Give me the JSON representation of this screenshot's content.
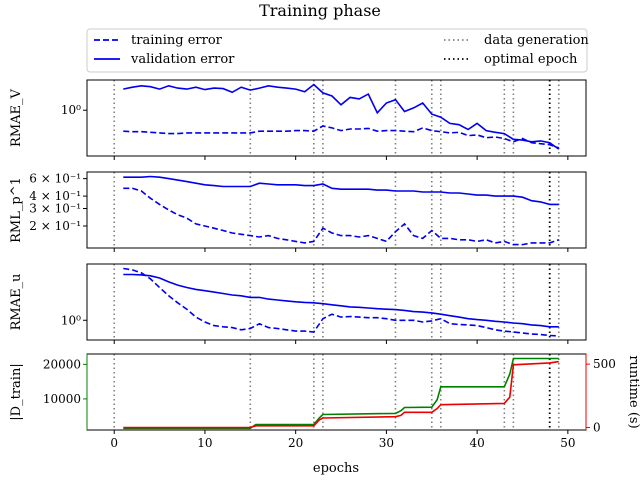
{
  "figure": {
    "title": "Training phase",
    "xlabel": "epochs"
  },
  "legend": [
    {
      "label": "training error",
      "style": "dashed",
      "color": "#0000ee"
    },
    {
      "label": "validation error",
      "style": "solid",
      "color": "#0000ee"
    },
    {
      "label": "data generation",
      "style": "dotted-gray",
      "color": "#808080"
    },
    {
      "label": "optimal epoch",
      "style": "dotted-black",
      "color": "#000000"
    }
  ],
  "chart_data": {
    "type": "line",
    "x_shared": {
      "xlim": [
        -3,
        52
      ],
      "ticks": [
        0,
        10,
        20,
        30,
        40,
        50
      ],
      "tick_labels": [
        "0",
        "10",
        "20",
        "30",
        "40",
        "50"
      ]
    },
    "data_generation_epochs": [
      0,
      15,
      22,
      23,
      31,
      35,
      36,
      43,
      44,
      49
    ],
    "optimal_epoch": 48,
    "panels": [
      {
        "ylabel": "RMAE_V",
        "yscale": "log",
        "ylim": [
          0.15,
          3.5
        ],
        "y_ticks": [
          1.0
        ],
        "y_tick_labels": [
          "10⁰"
        ],
        "series": [
          {
            "name": "training error",
            "style": "dashed",
            "color": "#0000ee",
            "x": [
              1,
              2,
              3,
              4,
              5,
              6,
              7,
              8,
              9,
              10,
              11,
              12,
              13,
              14,
              15,
              16,
              17,
              18,
              19,
              20,
              21,
              22,
              23,
              24,
              25,
              26,
              27,
              28,
              29,
              30,
              31,
              32,
              33,
              34,
              35,
              36,
              37,
              38,
              39,
              40,
              41,
              42,
              43,
              44,
              45,
              46,
              47,
              48,
              49
            ],
            "y": [
              0.42,
              0.41,
              0.41,
              0.4,
              0.39,
              0.38,
              0.38,
              0.39,
              0.39,
              0.39,
              0.39,
              0.39,
              0.39,
              0.39,
              0.39,
              0.42,
              0.42,
              0.42,
              0.42,
              0.43,
              0.43,
              0.42,
              0.52,
              0.48,
              0.43,
              0.46,
              0.46,
              0.47,
              0.42,
              0.43,
              0.43,
              0.42,
              0.41,
              0.48,
              0.43,
              0.41,
              0.39,
              0.4,
              0.35,
              0.36,
              0.32,
              0.33,
              0.31,
              0.27,
              0.31,
              0.26,
              0.25,
              0.24,
              0.21
            ]
          },
          {
            "name": "validation error",
            "style": "solid",
            "color": "#0000ee",
            "x": [
              1,
              2,
              3,
              4,
              5,
              6,
              7,
              8,
              9,
              10,
              11,
              12,
              13,
              14,
              15,
              16,
              17,
              18,
              19,
              20,
              21,
              22,
              23,
              24,
              25,
              26,
              27,
              28,
              29,
              30,
              31,
              32,
              33,
              34,
              35,
              36,
              37,
              38,
              39,
              40,
              41,
              42,
              43,
              44,
              45,
              46,
              47,
              48,
              49
            ],
            "y": [
              2.4,
              2.6,
              2.75,
              2.65,
              2.4,
              2.75,
              2.5,
              2.4,
              2.6,
              2.35,
              2.5,
              2.45,
              2.1,
              2.6,
              2.3,
              2.5,
              2.75,
              2.6,
              2.5,
              2.4,
              2.15,
              2.9,
              2.05,
              1.8,
              1.25,
              1.7,
              1.6,
              1.95,
              0.9,
              1.35,
              1.55,
              0.95,
              1.1,
              1.35,
              0.85,
              0.75,
              0.58,
              0.55,
              0.45,
              0.58,
              0.43,
              0.4,
              0.38,
              0.3,
              0.29,
              0.27,
              0.28,
              0.26,
              0.2
            ]
          }
        ]
      },
      {
        "ylabel": "RML_p^1",
        "yscale": "log",
        "ylim": [
          0.12,
          0.7
        ],
        "y_ticks": [
          0.2,
          0.3,
          0.4,
          0.6
        ],
        "y_tick_labels": [
          "2 × 10⁻¹",
          "3 × 10⁻¹",
          "4 × 10⁻¹",
          "6 × 10⁻¹"
        ],
        "series": [
          {
            "name": "training error",
            "style": "dashed",
            "color": "#0000ee",
            "x": [
              1,
              2,
              3,
              4,
              5,
              6,
              7,
              8,
              9,
              10,
              11,
              12,
              13,
              14,
              15,
              16,
              17,
              18,
              19,
              20,
              21,
              22,
              23,
              24,
              25,
              26,
              27,
              28,
              29,
              30,
              31,
              32,
              33,
              34,
              35,
              36,
              37,
              38,
              39,
              40,
              41,
              42,
              43,
              44,
              45,
              46,
              47,
              48,
              49
            ],
            "y": [
              0.48,
              0.48,
              0.45,
              0.38,
              0.33,
              0.29,
              0.26,
              0.24,
              0.21,
              0.2,
              0.19,
              0.18,
              0.17,
              0.165,
              0.16,
              0.155,
              0.16,
              0.15,
              0.145,
              0.14,
              0.135,
              0.14,
              0.19,
              0.17,
              0.16,
              0.16,
              0.155,
              0.16,
              0.15,
              0.14,
              0.175,
              0.21,
              0.16,
              0.15,
              0.18,
              0.15,
              0.15,
              0.145,
              0.145,
              0.14,
              0.145,
              0.135,
              0.14,
              0.13,
              0.13,
              0.135,
              0.135,
              0.135,
              0.145
            ]
          },
          {
            "name": "validation error",
            "style": "solid",
            "color": "#0000ee",
            "x": [
              1,
              2,
              3,
              4,
              5,
              6,
              7,
              8,
              9,
              10,
              11,
              12,
              13,
              14,
              15,
              16,
              17,
              18,
              19,
              20,
              21,
              22,
              23,
              24,
              25,
              26,
              27,
              28,
              29,
              30,
              31,
              32,
              33,
              34,
              35,
              36,
              37,
              38,
              39,
              40,
              41,
              42,
              43,
              44,
              45,
              46,
              47,
              48,
              49
            ],
            "y": [
              0.62,
              0.62,
              0.62,
              0.63,
              0.62,
              0.6,
              0.58,
              0.56,
              0.54,
              0.52,
              0.51,
              0.5,
              0.5,
              0.5,
              0.5,
              0.54,
              0.53,
              0.52,
              0.52,
              0.52,
              0.51,
              0.51,
              0.53,
              0.48,
              0.47,
              0.47,
              0.47,
              0.47,
              0.46,
              0.46,
              0.45,
              0.45,
              0.45,
              0.44,
              0.44,
              0.44,
              0.43,
              0.43,
              0.42,
              0.41,
              0.41,
              0.4,
              0.4,
              0.4,
              0.39,
              0.36,
              0.35,
              0.33,
              0.33
            ]
          }
        ]
      },
      {
        "ylabel": "RMAE_u",
        "yscale": "log",
        "ylim": [
          0.55,
          5.5
        ],
        "y_ticks": [
          1.0
        ],
        "y_tick_labels": [
          "10⁰"
        ],
        "series": [
          {
            "name": "training error",
            "style": "dashed",
            "color": "#0000ee",
            "x": [
              1,
              2,
              3,
              4,
              5,
              6,
              7,
              8,
              9,
              10,
              11,
              12,
              13,
              14,
              15,
              16,
              17,
              18,
              19,
              20,
              21,
              22,
              23,
              24,
              25,
              26,
              27,
              28,
              29,
              30,
              31,
              32,
              33,
              34,
              35,
              36,
              37,
              38,
              39,
              40,
              41,
              42,
              43,
              44,
              45,
              46,
              47,
              48,
              49
            ],
            "y": [
              4.8,
              4.6,
              4.2,
              3.5,
              2.7,
              2.1,
              1.7,
              1.4,
              1.1,
              0.95,
              0.85,
              0.82,
              0.8,
              0.75,
              0.78,
              0.9,
              0.8,
              0.78,
              0.75,
              0.72,
              0.72,
              0.7,
              1.05,
              1.2,
              1.1,
              1.12,
              1.1,
              1.08,
              1.08,
              1.05,
              1.0,
              1.0,
              1.0,
              0.95,
              0.98,
              1.05,
              0.9,
              0.88,
              0.87,
              0.85,
              0.8,
              0.75,
              0.72,
              0.7,
              0.68,
              0.66,
              0.65,
              0.63,
              0.62
            ]
          },
          {
            "name": "validation error",
            "style": "solid",
            "color": "#0000ee",
            "x": [
              1,
              2,
              3,
              4,
              5,
              6,
              7,
              8,
              9,
              10,
              11,
              12,
              13,
              14,
              15,
              16,
              17,
              18,
              19,
              20,
              21,
              22,
              23,
              24,
              25,
              26,
              27,
              28,
              29,
              30,
              31,
              32,
              33,
              34,
              35,
              36,
              37,
              38,
              39,
              40,
              41,
              42,
              43,
              44,
              45,
              46,
              47,
              48,
              49
            ],
            "y": [
              4.0,
              4.0,
              3.95,
              3.85,
              3.6,
              3.2,
              2.9,
              2.7,
              2.55,
              2.45,
              2.35,
              2.25,
              2.15,
              2.1,
              2.0,
              2.0,
              1.9,
              1.85,
              1.8,
              1.75,
              1.72,
              1.7,
              1.65,
              1.6,
              1.55,
              1.5,
              1.48,
              1.45,
              1.42,
              1.4,
              1.38,
              1.35,
              1.3,
              1.28,
              1.25,
              1.2,
              1.15,
              1.1,
              1.05,
              1.02,
              1.0,
              0.97,
              0.95,
              0.92,
              0.9,
              0.87,
              0.85,
              0.82,
              0.82
            ]
          }
        ]
      },
      {
        "ylabel": "|D_train|",
        "yscale": "linear",
        "ylim": [
          1000,
          23000
        ],
        "y_ticks": [
          10000,
          20000
        ],
        "y_tick_labels": [
          "10000",
          "20000"
        ],
        "ylabel_color": "#008000",
        "series": [
          {
            "name": "dataset size",
            "style": "solid",
            "color": "#008000",
            "x": [
              1,
              15,
              15.6,
              16,
              22,
              22.6,
              23,
              31,
              31.6,
              32,
              35,
              35.6,
              36,
              43,
              43.6,
              44,
              48,
              49
            ],
            "y": [
              1500,
              1500,
              2600,
              2600,
              2600,
              4500,
              5500,
              5800,
              6600,
              7500,
              7600,
              9800,
              13500,
              13500,
              17200,
              21700,
              21700,
              21700
            ]
          }
        ],
        "secondary_axis": {
          "ylabel": "runtime (s)",
          "color": "#ee0000",
          "ylim": [
            -20,
            580
          ],
          "y_ticks": [
            0,
            500
          ],
          "y_tick_labels": [
            "0",
            "500"
          ],
          "series": [
            {
              "name": "runtime",
              "style": "solid",
              "color": "#ee0000",
              "x": [
                1,
                15,
                15.6,
                16,
                22,
                22.6,
                23,
                31,
                31.6,
                32,
                35,
                35.6,
                36,
                43,
                43.6,
                44,
                48,
                49
              ],
              "y": [
                0,
                0,
                13,
                13,
                13,
                60,
                75,
                85,
                95,
                120,
                120,
                150,
                180,
                190,
                240,
                495,
                510,
                520
              ]
            }
          ]
        }
      }
    ]
  }
}
